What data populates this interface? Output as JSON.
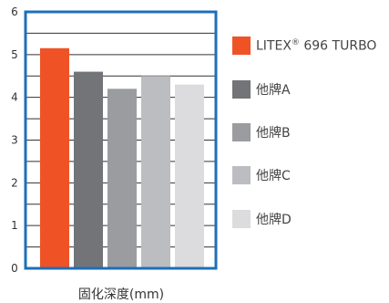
{
  "chart_data": {
    "type": "bar",
    "xlabel": "固化深度(mm)",
    "ylabel": "",
    "ylim": [
      0,
      6
    ],
    "yticks": [
      "0",
      "1",
      "2",
      "3",
      "4",
      "5",
      "6"
    ],
    "grid": true,
    "legend_position": "right",
    "series": [
      {
        "name": "LITEX",
        "name_suffix": " 696 TURBO",
        "name_mark": "®",
        "value": 5.15,
        "color": "#ef5325"
      },
      {
        "name": "他牌A",
        "value": 4.6,
        "color": "#737478"
      },
      {
        "name": "他牌B",
        "value": 4.2,
        "color": "#9b9c9f"
      },
      {
        "name": "他牌C",
        "value": 4.5,
        "color": "#bcbdc0"
      },
      {
        "name": "他牌D",
        "value": 4.3,
        "color": "#dcdcde"
      }
    ]
  },
  "colors": {
    "frame": "#1f6fb5",
    "grid": "#333333"
  }
}
